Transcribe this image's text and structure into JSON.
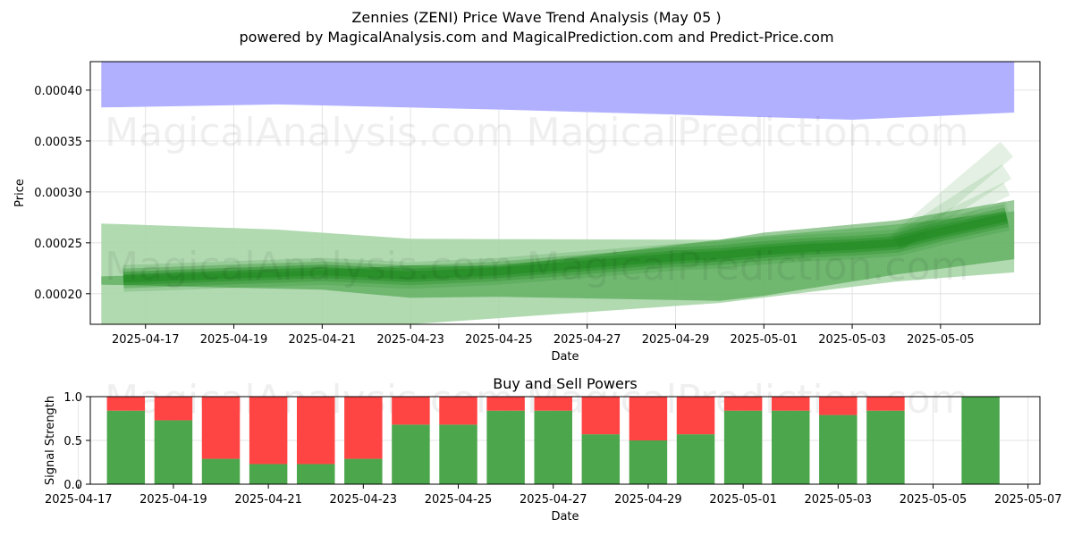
{
  "figure": {
    "title": "Zennies (ZENI) Price Wave Trend Analysis (May 05 )",
    "subtitle": "powered by MagicalAnalysis.com and MagicalPrediction.com and Predict-Price.com",
    "watermarks": [
      "MagicalAnalysis.com",
      "MagicalPrediction.com"
    ]
  },
  "chart_data": [
    {
      "type": "area",
      "title": "",
      "xlabel": "Date",
      "ylabel": "Price",
      "xlim": [
        "2025-04-15T18:00",
        "2025-05-07T06:00"
      ],
      "ylim": [
        0.00017,
        0.000428
      ],
      "grid": true,
      "xticks": [
        "2025-04-17",
        "2025-04-19",
        "2025-04-21",
        "2025-04-23",
        "2025-04-25",
        "2025-04-27",
        "2025-04-29",
        "2025-05-01",
        "2025-05-03",
        "2025-05-05"
      ],
      "xtick_labels": [
        "2025-04-17",
        "2025-04-19",
        "2025-04-21",
        "2025-04-23",
        "2025-04-25",
        "2025-04-27",
        "2025-04-29",
        "2025-05-01",
        "2025-05-03",
        "2025-05-05"
      ],
      "yticks": [
        0.0002,
        0.00025,
        0.0003,
        0.00035,
        0.0004
      ],
      "ytick_labels": [
        "0.00020",
        "0.00025",
        "0.00030",
        "0.00035",
        "0.00040"
      ],
      "colors": {
        "resistance": "#b0b0ff",
        "wave": "#228b22",
        "bands": "#a9d6a9"
      },
      "series": [
        {
          "role": "upper band",
          "x": [
            "2025-04-16",
            "2025-04-20",
            "2025-04-25",
            "2025-04-29",
            "2025-05-03",
            "2025-05-06T16:00"
          ],
          "upper": [
            0.000428,
            0.000428,
            0.000428,
            0.000428,
            0.000428,
            0.000428
          ],
          "lower": [
            0.000383,
            0.000386,
            0.000381,
            0.000376,
            0.000371,
            0.000378
          ]
        },
        {
          "role": "outer band",
          "x": [
            "2025-04-16",
            "2025-04-20",
            "2025-04-23",
            "2025-04-30",
            "2025-05-04",
            "2025-05-06T16:00"
          ],
          "upper": [
            0.000269,
            0.000263,
            0.000254,
            0.000253,
            0.000268,
            0.000281
          ],
          "lower": [
            0.000165,
            0.00017,
            0.00017,
            0.000191,
            0.000212,
            0.000221
          ]
        },
        {
          "role": "wave band",
          "x": [
            "2025-04-16",
            "2025-04-21",
            "2025-04-23",
            "2025-04-25",
            "2025-04-30",
            "2025-05-01",
            "2025-05-04",
            "2025-05-06T16:00"
          ],
          "upper": [
            0.000217,
            0.000223,
            0.000228,
            0.000227,
            0.000253,
            0.00026,
            0.000272,
            0.000292
          ],
          "lower": [
            0.000209,
            0.000204,
            0.000196,
            0.000197,
            0.000193,
            0.000198,
            0.000219,
            0.000234
          ]
        },
        {
          "role": "trend",
          "x": [
            "2025-04-16T12:00",
            "2025-04-19",
            "2025-04-21",
            "2025-04-23",
            "2025-04-25",
            "2025-04-27",
            "2025-04-29",
            "2025-04-30",
            "2025-05-01",
            "2025-05-02",
            "2025-05-03",
            "2025-05-04",
            "2025-05-05",
            "2025-05-06T12:00"
          ],
          "y": [
            0.000215,
            0.000219,
            0.000222,
            0.000218,
            0.000222,
            0.000229,
            0.000236,
            0.000238,
            0.000242,
            0.000245,
            0.000247,
            0.00025,
            0.000261,
            0.000275
          ]
        },
        {
          "role": "projections",
          "start": "2025-05-04",
          "start_value": 0.00025,
          "end": "2025-05-06T12:00",
          "end_values": [
            0.000342,
            0.00032,
            0.000303,
            0.000286
          ]
        }
      ]
    },
    {
      "type": "bar",
      "title": "Buy and Sell Powers",
      "xlabel": "Date",
      "ylabel": "Signal Strength",
      "xlim": [
        "2025-04-17T06:00",
        "2025-05-07T06:00"
      ],
      "ylim": [
        0,
        1
      ],
      "grid": true,
      "xticks": [
        "2025-04-17",
        "2025-04-19",
        "2025-04-21",
        "2025-04-23",
        "2025-04-25",
        "2025-04-27",
        "2025-04-29",
        "2025-05-01",
        "2025-05-03",
        "2025-05-05",
        "2025-05-07"
      ],
      "xtick_labels": [
        "2025-04-17",
        "2025-04-19",
        "2025-04-21",
        "2025-04-23",
        "2025-04-25",
        "2025-04-27",
        "2025-04-29",
        "2025-05-01",
        "2025-05-03",
        "2025-05-05",
        "2025-05-07"
      ],
      "yticks": [
        0,
        0.5,
        1
      ],
      "ytick_labels": [
        "0.0",
        "0.5",
        "1.0"
      ],
      "colors": {
        "buy": "#4ca64c",
        "sell": "#ff4444"
      },
      "categories": [
        "2025-04-18",
        "2025-04-19",
        "2025-04-20",
        "2025-04-21",
        "2025-04-22",
        "2025-04-23",
        "2025-04-24",
        "2025-04-25",
        "2025-04-26",
        "2025-04-27",
        "2025-04-28",
        "2025-04-29",
        "2025-04-30",
        "2025-05-01",
        "2025-05-02",
        "2025-05-03",
        "2025-05-04",
        "2025-05-06"
      ],
      "series": [
        {
          "role": "buy",
          "values": [
            0.84,
            0.73,
            0.29,
            0.23,
            0.23,
            0.29,
            0.68,
            0.68,
            0.84,
            0.84,
            0.57,
            0.5,
            0.57,
            0.84,
            0.84,
            0.79,
            0.84,
            1.0
          ]
        },
        {
          "role": "sell",
          "values": [
            0.16,
            0.27,
            0.71,
            0.77,
            0.77,
            0.71,
            0.32,
            0.32,
            0.16,
            0.16,
            0.43,
            0.5,
            0.43,
            0.16,
            0.16,
            0.21,
            0.16,
            0.0
          ]
        }
      ]
    }
  ]
}
